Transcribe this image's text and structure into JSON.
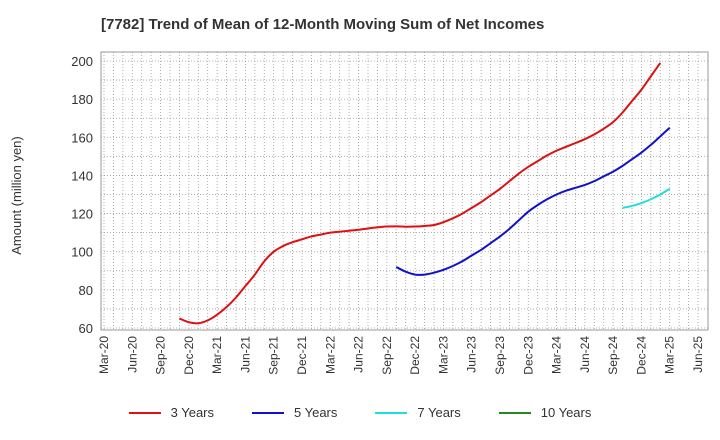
{
  "chart_data": {
    "type": "line",
    "title": "[7782]  Trend of Mean of 12-Month Moving Sum of Net Incomes",
    "ylabel": "Amount (million yen)",
    "xlabel": "",
    "ylim": [
      60,
      200
    ],
    "yticks": [
      60,
      80,
      100,
      120,
      140,
      160,
      180,
      200
    ],
    "x_labels": [
      "Mar-20",
      "Jun-20",
      "Sep-20",
      "Dec-20",
      "Mar-21",
      "Jun-21",
      "Sep-21",
      "Dec-21",
      "Mar-22",
      "Jun-22",
      "Sep-22",
      "Dec-22",
      "Mar-23",
      "Jun-23",
      "Sep-23",
      "Dec-23",
      "Mar-24",
      "Jun-24",
      "Sep-24",
      "Dec-24",
      "Mar-25",
      "Jun-25"
    ],
    "grid": true,
    "legend_position": "bottom",
    "series": [
      {
        "name": "3 Years",
        "color": "#dd1111",
        "points": [
          {
            "x": "Nov-20",
            "y": 65
          },
          {
            "x": "Dec-20",
            "y": 63
          },
          {
            "x": "Jan-21",
            "y": 62.5
          },
          {
            "x": "Feb-21",
            "y": 64
          },
          {
            "x": "Mar-21",
            "y": 67
          },
          {
            "x": "Apr-21",
            "y": 71
          },
          {
            "x": "May-21",
            "y": 76
          },
          {
            "x": "Jun-21",
            "y": 82
          },
          {
            "x": "Jul-21",
            "y": 88
          },
          {
            "x": "Aug-21",
            "y": 95
          },
          {
            "x": "Sep-21",
            "y": 100
          },
          {
            "x": "Oct-21",
            "y": 103
          },
          {
            "x": "Nov-21",
            "y": 105
          },
          {
            "x": "Dec-21",
            "y": 106.5
          },
          {
            "x": "Jan-22",
            "y": 108
          },
          {
            "x": "Feb-22",
            "y": 109
          },
          {
            "x": "Mar-22",
            "y": 110
          },
          {
            "x": "Apr-22",
            "y": 110.5
          },
          {
            "x": "May-22",
            "y": 111
          },
          {
            "x": "Jun-22",
            "y": 111.5
          },
          {
            "x": "Jul-22",
            "y": 112.2
          },
          {
            "x": "Aug-22",
            "y": 112.8
          },
          {
            "x": "Sep-22",
            "y": 113.2
          },
          {
            "x": "Oct-22",
            "y": 113.3
          },
          {
            "x": "Nov-22",
            "y": 113.1
          },
          {
            "x": "Dec-22",
            "y": 113.2
          },
          {
            "x": "Jan-23",
            "y": 113.5
          },
          {
            "x": "Feb-23",
            "y": 114
          },
          {
            "x": "Mar-23",
            "y": 115.5
          },
          {
            "x": "Apr-23",
            "y": 117.5
          },
          {
            "x": "May-23",
            "y": 120
          },
          {
            "x": "Jun-23",
            "y": 123
          },
          {
            "x": "Jul-23",
            "y": 126
          },
          {
            "x": "Aug-23",
            "y": 129.5
          },
          {
            "x": "Sep-23",
            "y": 133
          },
          {
            "x": "Oct-23",
            "y": 137
          },
          {
            "x": "Nov-23",
            "y": 141
          },
          {
            "x": "Dec-23",
            "y": 144.5
          },
          {
            "x": "Jan-24",
            "y": 147.5
          },
          {
            "x": "Feb-24",
            "y": 150.5
          },
          {
            "x": "Mar-24",
            "y": 153
          },
          {
            "x": "Apr-24",
            "y": 155
          },
          {
            "x": "May-24",
            "y": 157
          },
          {
            "x": "Jun-24",
            "y": 159
          },
          {
            "x": "Jul-24",
            "y": 161.5
          },
          {
            "x": "Aug-24",
            "y": 164.5
          },
          {
            "x": "Sep-24",
            "y": 168
          },
          {
            "x": "Oct-24",
            "y": 173
          },
          {
            "x": "Nov-24",
            "y": 179
          },
          {
            "x": "Dec-24",
            "y": 185
          },
          {
            "x": "Jan-25",
            "y": 192
          },
          {
            "x": "Feb-25",
            "y": 199
          }
        ]
      },
      {
        "name": "5 Years",
        "color": "#1111cc",
        "points": [
          {
            "x": "Oct-22",
            "y": 92
          },
          {
            "x": "Nov-22",
            "y": 89.5
          },
          {
            "x": "Dec-22",
            "y": 88
          },
          {
            "x": "Jan-23",
            "y": 88
          },
          {
            "x": "Feb-23",
            "y": 89
          },
          {
            "x": "Mar-23",
            "y": 90.5
          },
          {
            "x": "Apr-23",
            "y": 92.5
          },
          {
            "x": "May-23",
            "y": 95
          },
          {
            "x": "Jun-23",
            "y": 98
          },
          {
            "x": "Jul-23",
            "y": 101
          },
          {
            "x": "Aug-23",
            "y": 104.5
          },
          {
            "x": "Sep-23",
            "y": 108
          },
          {
            "x": "Oct-23",
            "y": 112
          },
          {
            "x": "Nov-23",
            "y": 116.5
          },
          {
            "x": "Dec-23",
            "y": 121
          },
          {
            "x": "Jan-24",
            "y": 124.5
          },
          {
            "x": "Feb-24",
            "y": 127.5
          },
          {
            "x": "Mar-24",
            "y": 130
          },
          {
            "x": "Apr-24",
            "y": 132
          },
          {
            "x": "May-24",
            "y": 133.5
          },
          {
            "x": "Jun-24",
            "y": 135
          },
          {
            "x": "Jul-24",
            "y": 137
          },
          {
            "x": "Aug-24",
            "y": 139.5
          },
          {
            "x": "Sep-24",
            "y": 142
          },
          {
            "x": "Oct-24",
            "y": 145
          },
          {
            "x": "Nov-24",
            "y": 148.5
          },
          {
            "x": "Dec-24",
            "y": 152
          },
          {
            "x": "Jan-25",
            "y": 156
          },
          {
            "x": "Feb-25",
            "y": 160.5
          },
          {
            "x": "Mar-25",
            "y": 165
          }
        ]
      },
      {
        "name": "7 Years",
        "color": "#22dddd",
        "points": [
          {
            "x": "Oct-24",
            "y": 123
          },
          {
            "x": "Nov-24",
            "y": 124
          },
          {
            "x": "Dec-24",
            "y": 125.5
          },
          {
            "x": "Jan-25",
            "y": 127.5
          },
          {
            "x": "Feb-25",
            "y": 130
          },
          {
            "x": "Mar-25",
            "y": 133
          }
        ]
      },
      {
        "name": "10 Years",
        "color": "#228822",
        "points": []
      }
    ]
  }
}
